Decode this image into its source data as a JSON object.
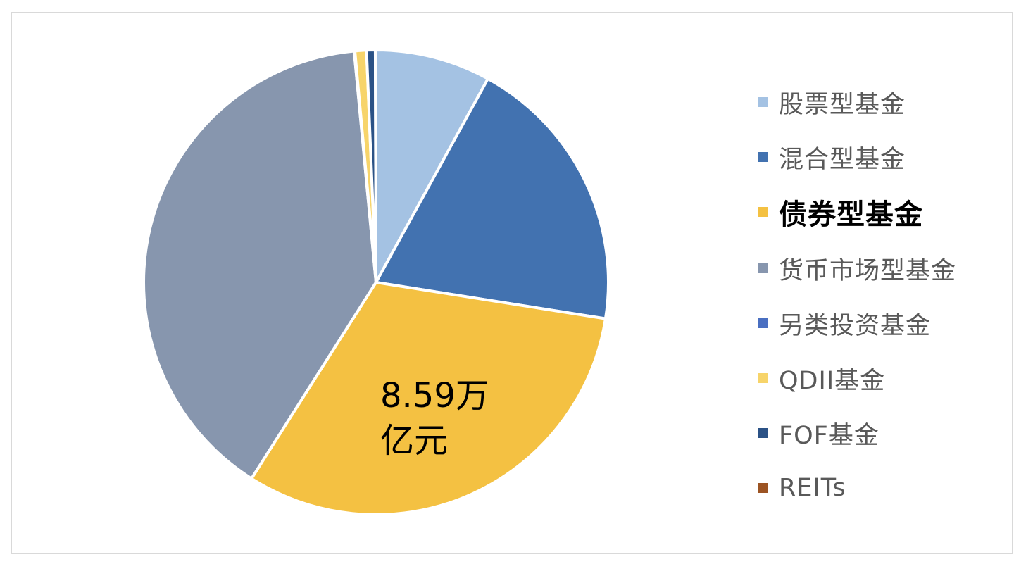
{
  "chart_data": {
    "type": "pie",
    "title": "",
    "categories": [
      "股票型基金",
      "混合型基金",
      "债券型基金",
      "货币市场型基金",
      "另类投资基金",
      "QDII基金",
      "FOF基金",
      "REITs"
    ],
    "values": [
      8.0,
      19.5,
      31.5,
      39.5,
      0.05,
      0.8,
      0.6,
      0.05
    ],
    "colors": [
      "#a4c2e3",
      "#4272b0",
      "#f4c142",
      "#8796ae",
      "#4a6fc1",
      "#f7d46a",
      "#2b5286",
      "#9c5423"
    ],
    "legend_position": "right",
    "highlight_category": "债券型基金",
    "data_labels": [
      {
        "category": "债券型基金",
        "line1": "8.59万",
        "line2": "亿元"
      }
    ]
  }
}
